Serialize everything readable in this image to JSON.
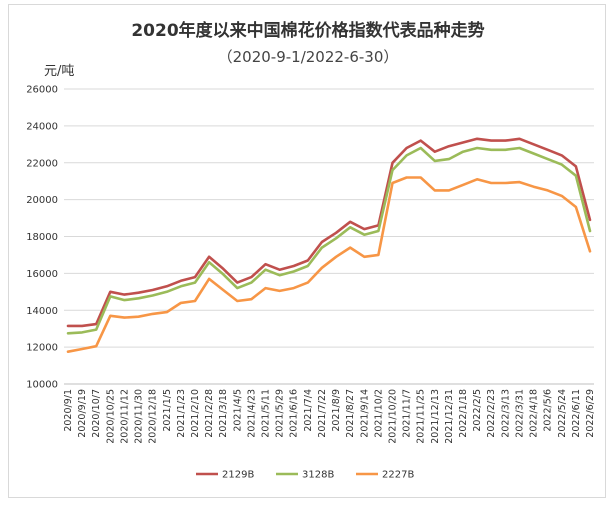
{
  "chart_data": {
    "type": "line",
    "title": "2020年度以来中国棉花价格指数代表品种走势",
    "subtitle": "（2020-9-1/2022-6-30）",
    "ylabel": "元/吨",
    "ylim": [
      10000,
      26000
    ],
    "yticks": [
      "26000",
      "24000",
      "22000",
      "20000",
      "18000",
      "16000",
      "14000",
      "12000",
      "10000"
    ],
    "grid": true,
    "legend_position": "bottom",
    "x": [
      "2020/9/1",
      "2020/9/19",
      "2020/10/7",
      "2020/10/25",
      "2020/11/12",
      "2020/11/30",
      "2020/12/18",
      "2021/1/5",
      "2021/1/23",
      "2021/2/10",
      "2021/2/28",
      "2021/3/18",
      "2021/4/5",
      "2021/4/23",
      "2021/5/11",
      "2021/5/29",
      "2021/6/16",
      "2021/7/4",
      "2021/7/22",
      "2021/8/9",
      "2021/8/27",
      "2021/9/14",
      "2021/10/2",
      "2021/10/20",
      "2021/11/7",
      "2021/11/25",
      "2021/12/13",
      "2021/12/31",
      "2022/1/18",
      "2022/2/5",
      "2022/2/23",
      "2022/3/13",
      "2022/3/31",
      "2022/4/18",
      "2022/5/6",
      "2022/5/24",
      "2022/6/11",
      "2022/6/29"
    ],
    "series": [
      {
        "name": "2129B",
        "color": "#c0504d",
        "values": [
          13150,
          13150,
          13250,
          15000,
          14850,
          14950,
          15100,
          15300,
          15600,
          15800,
          16900,
          16250,
          15500,
          15800,
          16500,
          16200,
          16400,
          16700,
          17700,
          18200,
          18800,
          18400,
          18600,
          22000,
          22800,
          23200,
          22600,
          22900,
          23100,
          23300,
          23200,
          23200,
          23300,
          23000,
          22700,
          22400,
          21800,
          18900
        ]
      },
      {
        "name": "3128B",
        "color": "#9bbb59",
        "values": [
          12750,
          12800,
          12950,
          14750,
          14550,
          14650,
          14800,
          15000,
          15300,
          15500,
          16600,
          15950,
          15200,
          15500,
          16200,
          15900,
          16100,
          16400,
          17400,
          17900,
          18500,
          18100,
          18300,
          21600,
          22400,
          22800,
          22100,
          22200,
          22600,
          22800,
          22700,
          22700,
          22800,
          22500,
          22200,
          21900,
          21300,
          18300
        ]
      },
      {
        "name": "2227B",
        "color": "#f79646",
        "values": [
          11750,
          11900,
          12050,
          13700,
          13600,
          13650,
          13800,
          13900,
          14400,
          14500,
          15700,
          15100,
          14500,
          14600,
          15200,
          15050,
          15200,
          15500,
          16300,
          16900,
          17400,
          16900,
          17000,
          20900,
          21200,
          21200,
          20500,
          20500,
          20800,
          21100,
          20900,
          20900,
          20950,
          20700,
          20500,
          20200,
          19600,
          17200
        ]
      }
    ]
  }
}
